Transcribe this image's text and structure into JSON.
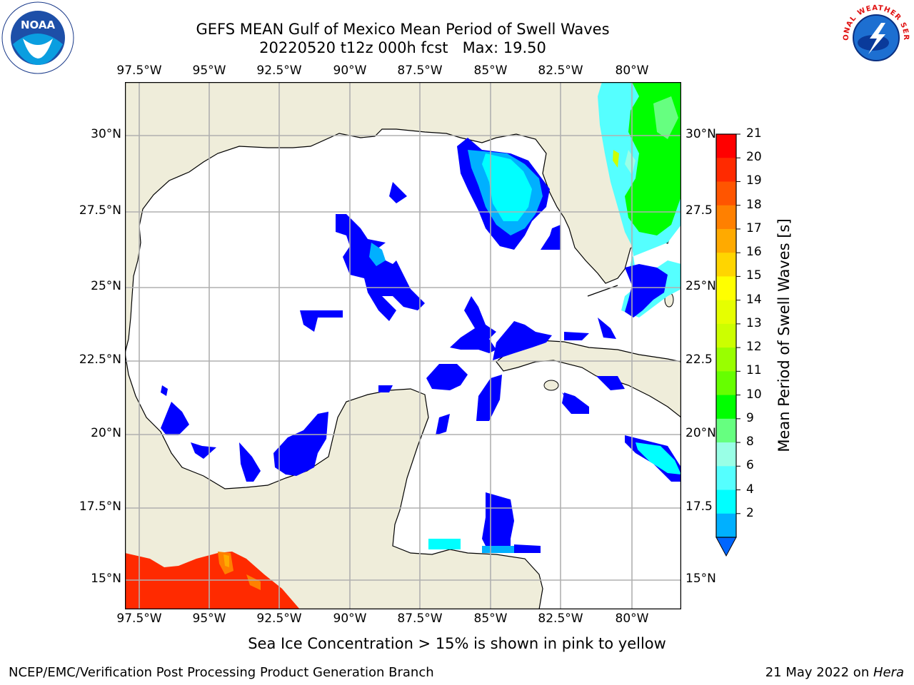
{
  "header": {
    "title_line1": "GEFS MEAN Gulf of Mexico Mean Period of Swell Waves",
    "title_line2": "20220520 t12z 000h fcst   Max: 19.50"
  },
  "logos": {
    "left_icon": "noaa-logo-icon",
    "left_text": "NOAA",
    "right_icon": "nws-logo-icon",
    "right_text": "NATIONAL WEATHER SERVICE"
  },
  "map": {
    "lon_ticks": [
      "97.5°W",
      "95°W",
      "92.5°W",
      "90°W",
      "87.5°W",
      "85°W",
      "82.5°W",
      "80°W"
    ],
    "lat_ticks_left": [
      "30°N",
      "27.5°N",
      "25°N",
      "22.5°N",
      "20°N",
      "17.5°N",
      "15°N"
    ],
    "lat_ticks_right": [
      "30°N",
      "27.5",
      "25°N",
      "22.5",
      "20°N",
      "17.5",
      "15°N"
    ],
    "land_color": "#efedda",
    "ocean_color": "#ffffff",
    "grid": true
  },
  "colorbar": {
    "label": "Mean Period of Swell Waves [s]",
    "ticks": [
      "21",
      "20",
      "19",
      "18",
      "17",
      "16",
      "15",
      "14",
      "13",
      "12",
      "11",
      "10",
      "9",
      "8",
      "6",
      "4",
      "2"
    ],
    "colors": [
      "#ff0000",
      "#ff2a00",
      "#ff5500",
      "#ff8000",
      "#ffaa00",
      "#ffd500",
      "#ffff00",
      "#e6ff00",
      "#ccff00",
      "#99ff00",
      "#66ff00",
      "#00ff00",
      "#66ff80",
      "#99ffe6",
      "#55ffff",
      "#00ffff",
      "#00b0ff",
      "#0066ff"
    ]
  },
  "caption": "Sea Ice Concentration > 15% is shown in pink to yellow",
  "footer": {
    "left": "NCEP/EMC/Verification Post Processing Product Generation Branch",
    "right_date": "21 May 2022 on ",
    "right_host": "Hera"
  }
}
